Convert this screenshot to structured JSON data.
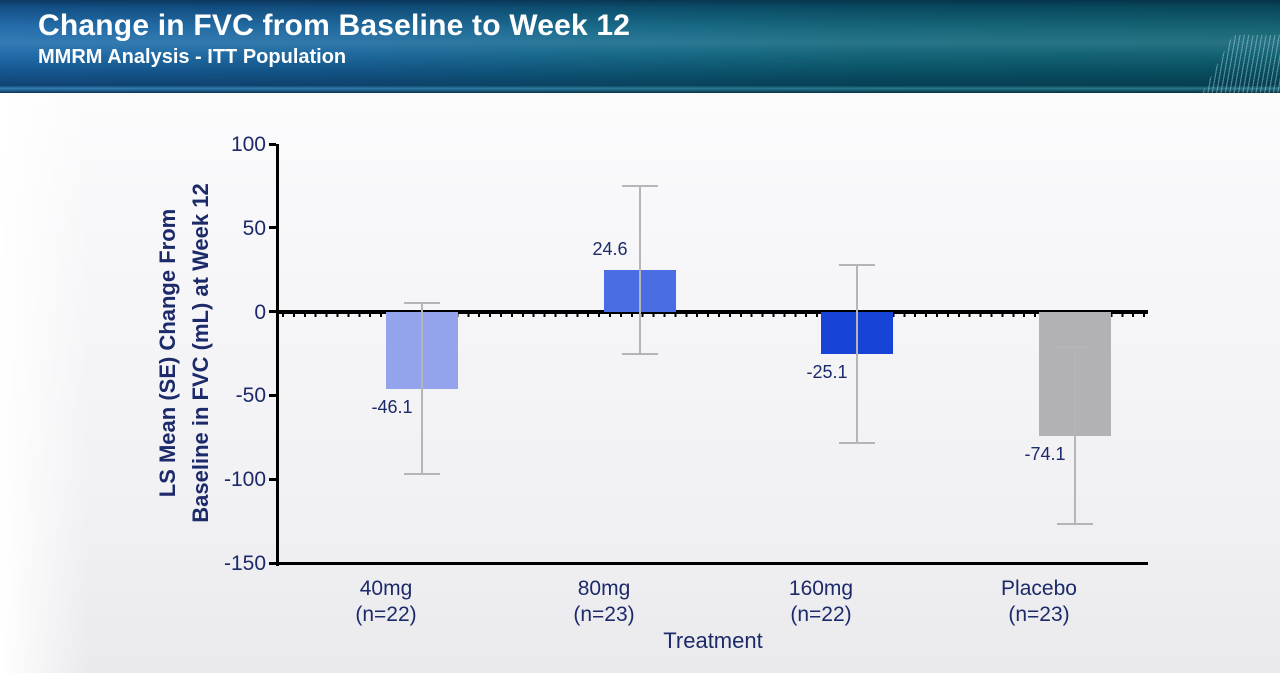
{
  "header": {
    "title": "Change in FVC from Baseline to Week 12",
    "subtitle": "MMRM Analysis - ITT Population",
    "text_color": "#ffffff",
    "gradient_left": "#1a67a8",
    "gradient_right": "#0a5c6c",
    "decoration": "diagonal-stripes-bottom-right"
  },
  "chart_data": {
    "type": "bar",
    "title": "",
    "xlabel": "Treatment",
    "ylabel_line1": "LS Mean (SE) Change From",
    "ylabel_line2": "Baseline in FVC (mL) at Week 12",
    "ylim": [
      -150,
      100
    ],
    "yticks": [
      100,
      50,
      0,
      -50,
      -100,
      -150
    ],
    "grid": false,
    "legend": "none",
    "categories": [
      "40mg",
      "80mg",
      "160mg",
      "Placebo"
    ],
    "category_sublabels": [
      "(n=22)",
      "(n=23)",
      "(n=22)",
      "(n=23)"
    ],
    "values": [
      -46.1,
      24.6,
      -25.1,
      -74.1
    ],
    "value_labels": [
      "-46.1",
      "24.6",
      "-25.1",
      "-74.1"
    ],
    "error_high": [
      5,
      75,
      28,
      -21
    ],
    "error_low": [
      -97,
      -25.5,
      -78.5,
      -126.5
    ],
    "bar_colors": [
      "#94a4ec",
      "#4a6de4",
      "#1743d6",
      "#b2b2b5"
    ],
    "error_bar_color": "#b5b5b8",
    "axis_color": "#000000",
    "text_color": "#1c2a6a"
  }
}
